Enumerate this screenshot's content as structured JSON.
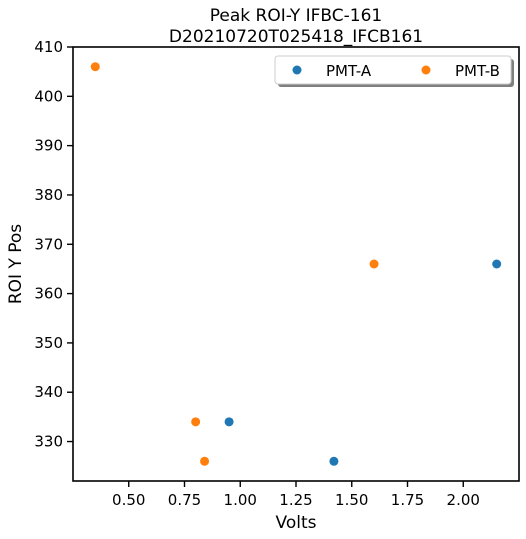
{
  "chart_data": {
    "type": "scatter",
    "title": "Peak ROI-Y IFBC-161",
    "subtitle": "D20210720T025418_IFCB161",
    "xlabel": "Volts",
    "ylabel": "ROI Y Pos",
    "xlim": [
      0.25,
      2.25
    ],
    "ylim": [
      322,
      410
    ],
    "xticks": [
      "0.50",
      "0.75",
      "1.00",
      "1.25",
      "1.50",
      "1.75",
      "2.00"
    ],
    "yticks": [
      "330",
      "340",
      "350",
      "360",
      "370",
      "380",
      "390",
      "400",
      "410"
    ],
    "grid": false,
    "legend": {
      "position": "top-right",
      "columns": 2
    },
    "series": [
      {
        "name": "PMT-A",
        "color": "#1f77b4",
        "points": [
          {
            "x": 0.95,
            "y": 334
          },
          {
            "x": 1.42,
            "y": 326
          },
          {
            "x": 2.15,
            "y": 366
          }
        ]
      },
      {
        "name": "PMT-B",
        "color": "#ff7f0e",
        "points": [
          {
            "x": 0.35,
            "y": 406
          },
          {
            "x": 0.8,
            "y": 334
          },
          {
            "x": 0.84,
            "y": 326
          },
          {
            "x": 1.6,
            "y": 366
          }
        ]
      }
    ]
  }
}
